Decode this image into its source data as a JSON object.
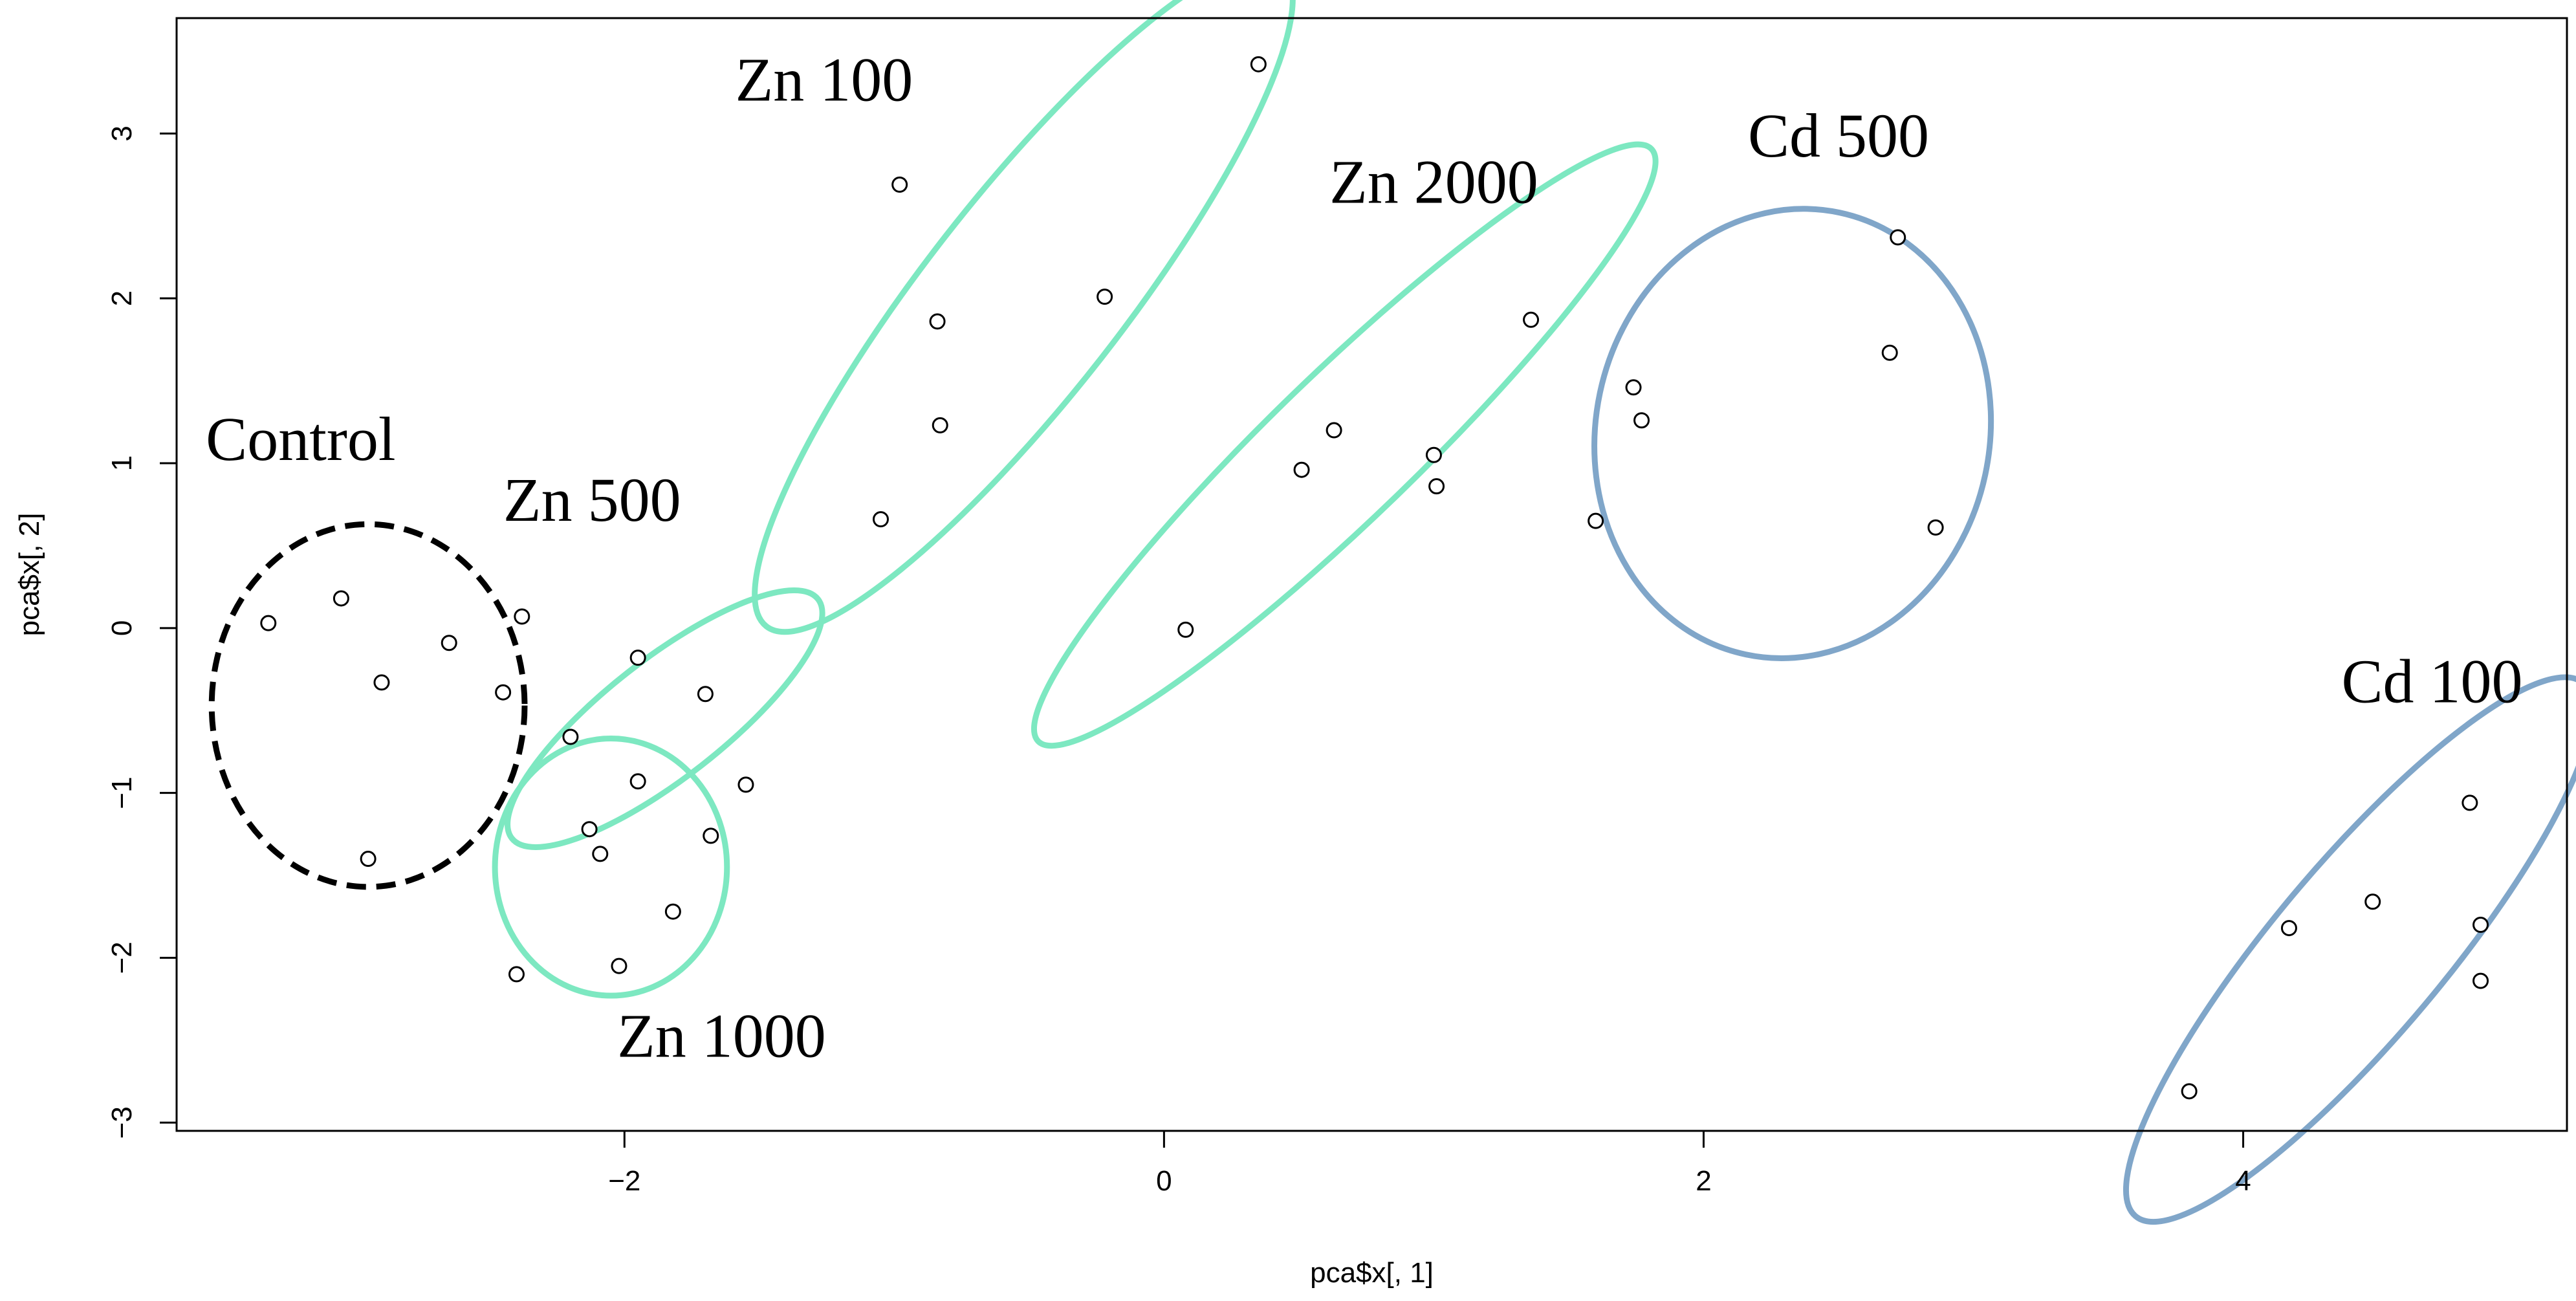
{
  "chart_data": {
    "type": "scatter",
    "title": "",
    "xlabel": "pca$x[, 1]",
    "ylabel": "pca$x[, 2]",
    "xlim": [
      -3.66,
      5.2
    ],
    "ylim": [
      -3.05,
      3.7
    ],
    "xticks": [
      {
        "v": -2,
        "label": "−2"
      },
      {
        "v": 0,
        "label": "0"
      },
      {
        "v": 2,
        "label": "2"
      },
      {
        "v": 4,
        "label": "4"
      }
    ],
    "yticks": [
      {
        "v": -3,
        "label": "−3"
      },
      {
        "v": -2,
        "label": "−2"
      },
      {
        "v": -1,
        "label": "−1"
      },
      {
        "v": 0,
        "label": "0"
      },
      {
        "v": 1,
        "label": "1"
      },
      {
        "v": 2,
        "label": "2"
      },
      {
        "v": 3,
        "label": "3"
      }
    ],
    "groups": [
      {
        "name": "Control",
        "color": "#000000",
        "dashed": true,
        "label_anchor": {
          "x": -3.2,
          "y": 1.02
        },
        "ellipse": {
          "cx": -2.95,
          "cy": -0.47,
          "rx": 0.58,
          "ry": 1.1,
          "angle": 0
        },
        "points": [
          {
            "x": -3.32,
            "y": 0.03
          },
          {
            "x": -3.05,
            "y": 0.18
          },
          {
            "x": -2.9,
            "y": -0.33
          },
          {
            "x": -2.65,
            "y": -0.09
          },
          {
            "x": -2.45,
            "y": -0.39
          },
          {
            "x": -2.95,
            "y": -1.4
          }
        ]
      },
      {
        "name": "Zn 500",
        "color": "#7de8c1",
        "dashed": false,
        "label_anchor": {
          "x": -2.12,
          "y": 0.65
        },
        "ellipse": {
          "cx": -1.85,
          "cy": -0.55,
          "rx": 0.72,
          "ry": 0.36,
          "angle": -38
        },
        "points": [
          {
            "x": -2.38,
            "y": 0.07
          },
          {
            "x": -2.2,
            "y": -0.66
          },
          {
            "x": -1.95,
            "y": -0.18
          },
          {
            "x": -1.7,
            "y": -0.4
          },
          {
            "x": -1.55,
            "y": -0.95
          },
          {
            "x": -1.68,
            "y": -1.26
          }
        ]
      },
      {
        "name": "Zn 1000",
        "color": "#7de8c1",
        "dashed": false,
        "label_anchor": {
          "x": -1.64,
          "y": -2.6
        },
        "ellipse": {
          "cx": -2.05,
          "cy": -1.45,
          "rx": 0.43,
          "ry": 0.78,
          "angle": 0
        },
        "points": [
          {
            "x": -1.95,
            "y": -0.93
          },
          {
            "x": -2.13,
            "y": -1.22
          },
          {
            "x": -2.09,
            "y": -1.37
          },
          {
            "x": -1.82,
            "y": -1.72
          },
          {
            "x": -2.02,
            "y": -2.05
          },
          {
            "x": -2.4,
            "y": -2.1
          }
        ]
      },
      {
        "name": "Zn 100",
        "color": "#7de8c1",
        "dashed": false,
        "label_anchor": {
          "x": -1.26,
          "y": 3.2
        },
        "ellipse": {
          "cx": -0.52,
          "cy": 2.01,
          "rx": 1.55,
          "ry": 0.6,
          "angle": -52
        },
        "points": [
          {
            "x": 0.35,
            "y": 3.42
          },
          {
            "x": -0.98,
            "y": 2.69
          },
          {
            "x": -0.22,
            "y": 2.01
          },
          {
            "x": -0.84,
            "y": 1.86
          },
          {
            "x": -0.83,
            "y": 1.23
          },
          {
            "x": -1.05,
            "y": 0.66
          }
        ]
      },
      {
        "name": "Zn 2000",
        "color": "#7de8c1",
        "dashed": false,
        "label_anchor": {
          "x": 1.0,
          "y": 2.58
        },
        "ellipse": {
          "cx": 0.67,
          "cy": 1.11,
          "rx": 1.58,
          "ry": 0.44,
          "angle": -44
        },
        "points": [
          {
            "x": 1.36,
            "y": 1.87
          },
          {
            "x": 0.63,
            "y": 1.2
          },
          {
            "x": 1.0,
            "y": 1.05
          },
          {
            "x": 0.51,
            "y": 0.96
          },
          {
            "x": 1.01,
            "y": 0.86
          },
          {
            "x": 0.08,
            "y": -0.01
          }
        ]
      },
      {
        "name": "Cd 500",
        "color": "#80a6c9",
        "dashed": false,
        "label_anchor": {
          "x": 2.5,
          "y": 2.86
        },
        "ellipse": {
          "cx": 2.33,
          "cy": 1.18,
          "rx": 0.73,
          "ry": 1.37,
          "angle": 12
        },
        "points": [
          {
            "x": 2.72,
            "y": 2.37
          },
          {
            "x": 2.69,
            "y": 1.67
          },
          {
            "x": 1.74,
            "y": 1.46
          },
          {
            "x": 1.77,
            "y": 1.26
          },
          {
            "x": 1.6,
            "y": 0.65
          },
          {
            "x": 2.86,
            "y": 0.61
          }
        ]
      },
      {
        "name": "Cd 100",
        "color": "#80a6c9",
        "dashed": false,
        "label_anchor": {
          "x": 4.7,
          "y": -0.45
        },
        "ellipse": {
          "cx": 4.43,
          "cy": -1.95,
          "rx": 1.29,
          "ry": 0.52,
          "angle": -50
        },
        "points": [
          {
            "x": 4.84,
            "y": -1.06
          },
          {
            "x": 4.48,
            "y": -1.66
          },
          {
            "x": 4.17,
            "y": -1.82
          },
          {
            "x": 4.88,
            "y": -1.8
          },
          {
            "x": 4.88,
            "y": -2.14
          },
          {
            "x": 3.8,
            "y": -2.81
          }
        ]
      }
    ]
  }
}
